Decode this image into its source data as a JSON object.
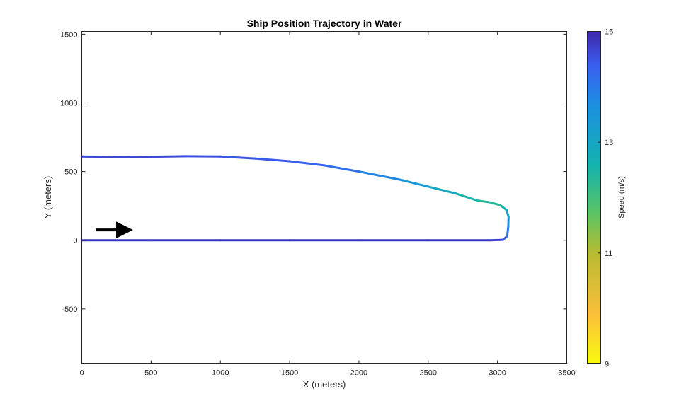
{
  "chart_data": {
    "type": "line",
    "title": "Ship Position Trajectory in Water",
    "xlabel": "X (meters)",
    "ylabel": "Y (meters)",
    "xlim": [
      0,
      3500
    ],
    "ylim": [
      -900,
      1520
    ],
    "xticks": [
      0,
      500,
      1000,
      1500,
      2000,
      2500,
      3000,
      3500
    ],
    "yticks": [
      -500,
      0,
      500,
      1000,
      1500
    ],
    "grid": false,
    "color_scale": "parula (reversed)",
    "colorbar": {
      "label": "Speed  (m/s)",
      "range": [
        9,
        15
      ],
      "ticks": [
        9,
        11,
        13,
        15
      ],
      "placement": "right"
    },
    "direction_arrow": {
      "from": [
        100,
        75
      ],
      "to": [
        380,
        75
      ],
      "color": "#000000"
    },
    "series": [
      {
        "points": [
          {
            "x": 0,
            "y": 0,
            "speed": 14.8
          },
          {
            "x": 500,
            "y": 0,
            "speed": 14.8
          },
          {
            "x": 1000,
            "y": 0,
            "speed": 14.8
          },
          {
            "x": 1500,
            "y": 0,
            "speed": 14.8
          },
          {
            "x": 2000,
            "y": 0,
            "speed": 14.8
          },
          {
            "x": 2500,
            "y": 0,
            "speed": 14.8
          },
          {
            "x": 2950,
            "y": 0,
            "speed": 14.8
          },
          {
            "x": 3040,
            "y": 3,
            "speed": 14.6
          },
          {
            "x": 3070,
            "y": 30,
            "speed": 14.2
          },
          {
            "x": 3078,
            "y": 100,
            "speed": 13.9
          },
          {
            "x": 3080,
            "y": 170,
            "speed": 13.4
          },
          {
            "x": 3065,
            "y": 220,
            "speed": 12.8
          },
          {
            "x": 3020,
            "y": 255,
            "speed": 12.4
          },
          {
            "x": 2950,
            "y": 275,
            "speed": 12.3
          },
          {
            "x": 2850,
            "y": 290,
            "speed": 12.4
          },
          {
            "x": 2700,
            "y": 340,
            "speed": 12.7
          },
          {
            "x": 2500,
            "y": 390,
            "speed": 13.2
          },
          {
            "x": 2300,
            "y": 440,
            "speed": 13.6
          },
          {
            "x": 2000,
            "y": 500,
            "speed": 14.0
          },
          {
            "x": 1750,
            "y": 545,
            "speed": 14.3
          },
          {
            "x": 1500,
            "y": 575,
            "speed": 14.4
          },
          {
            "x": 1250,
            "y": 595,
            "speed": 14.5
          },
          {
            "x": 1000,
            "y": 610,
            "speed": 14.5
          },
          {
            "x": 750,
            "y": 612,
            "speed": 14.6
          },
          {
            "x": 500,
            "y": 608,
            "speed": 14.6
          },
          {
            "x": 300,
            "y": 605,
            "speed": 14.6
          },
          {
            "x": 0,
            "y": 610,
            "speed": 14.6
          }
        ]
      }
    ]
  }
}
